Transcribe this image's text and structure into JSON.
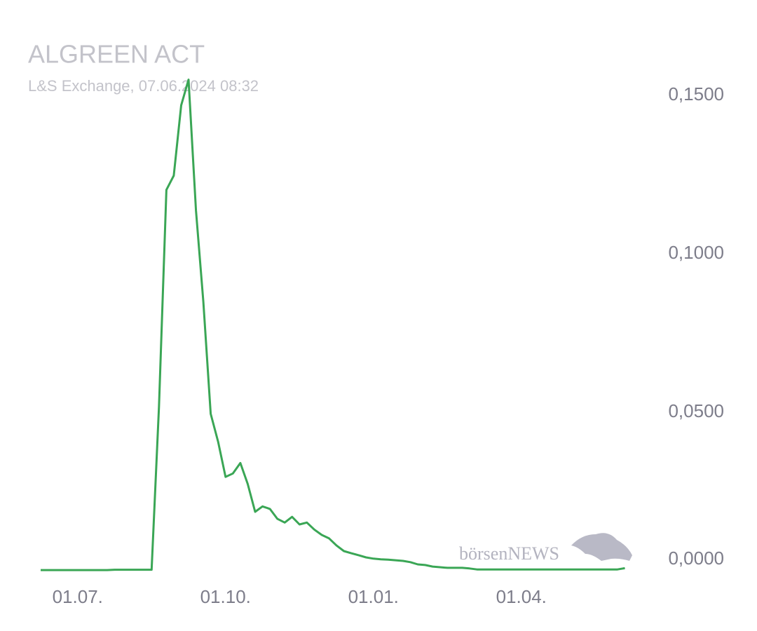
{
  "chart_data": {
    "type": "line",
    "title": "ALGREEN ACT",
    "subtitle": "L&S Exchange, 07.06.2024 08:32",
    "watermark": "börsenNEWS",
    "categories": [
      null,
      null,
      null,
      null,
      null,
      "01.07.",
      null,
      null,
      null,
      null,
      null,
      null,
      null,
      null,
      null,
      null,
      null,
      null,
      null,
      null,
      null,
      null,
      null,
      null,
      null,
      "01.10.",
      null,
      null,
      null,
      null,
      null,
      null,
      null,
      null,
      null,
      null,
      null,
      null,
      null,
      null,
      null,
      null,
      null,
      null,
      null,
      "01.01.",
      null,
      null,
      null,
      null,
      null,
      null,
      null,
      null,
      null,
      null,
      null,
      null,
      null,
      null,
      null,
      null,
      null,
      null,
      null,
      "01.04.",
      null,
      null,
      null,
      null,
      null,
      null,
      null,
      null,
      null,
      null,
      null,
      null,
      null,
      null
    ],
    "values": [
      0.0002,
      0.0002,
      0.0002,
      0.0002,
      0.0002,
      0.0002,
      0.0002,
      0.0002,
      0.0002,
      0.0002,
      0.0003,
      0.0003,
      0.0003,
      0.0003,
      0.0003,
      0.0003,
      0.0517,
      0.1202,
      0.1247,
      0.1469,
      0.155,
      0.1137,
      0.0849,
      0.0495,
      0.0407,
      0.0296,
      0.0307,
      0.034,
      0.0274,
      0.0186,
      0.0203,
      0.0195,
      0.0164,
      0.0152,
      0.017,
      0.0146,
      0.0152,
      0.013,
      0.0113,
      0.0102,
      0.008,
      0.0062,
      0.0055,
      0.0049,
      0.0042,
      0.0038,
      0.0036,
      0.0035,
      0.0033,
      0.0031,
      0.0027,
      0.002,
      0.0018,
      0.0013,
      0.0011,
      0.0009,
      0.0009,
      0.0009,
      0.0007,
      0.0004,
      0.0004,
      0.0004,
      0.0004,
      0.0004,
      0.0004,
      0.0004,
      0.0004,
      0.0004,
      0.0004,
      0.0004,
      0.0004,
      0.0004,
      0.0004,
      0.0004,
      0.0004,
      0.0004,
      0.0004,
      0.0004,
      0.0004,
      0.0008
    ],
    "color": "#3aa655",
    "ylim": [
      0,
      0.16
    ],
    "yticks": [
      {
        "value": 0,
        "label": "0,0000"
      },
      {
        "value": 0.05,
        "label": "0,0500"
      },
      {
        "value": 0.1,
        "label": "0,1000"
      },
      {
        "value": 0.15,
        "label": "0,1500"
      }
    ],
    "grid": false
  }
}
